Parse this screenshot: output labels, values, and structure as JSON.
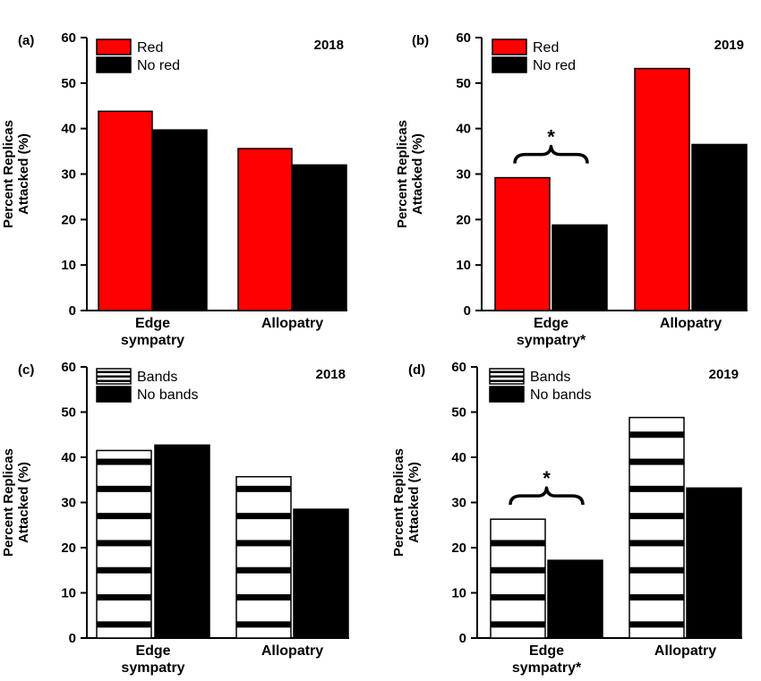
{
  "chart_data": [
    {
      "type": "bar",
      "panel": "(a)",
      "year": "2018",
      "ylabel": [
        "Percent Replicas",
        "Attacked (%)"
      ],
      "ylim": [
        0,
        60
      ],
      "yticks": [
        0,
        10,
        20,
        30,
        40,
        50,
        60
      ],
      "categories": [
        [
          "Edge",
          "sympatry"
        ],
        [
          "Allopatry"
        ]
      ],
      "series": [
        {
          "name": "Red",
          "values": [
            43.8,
            35.6
          ],
          "style": "solid",
          "color": "#ff0000"
        },
        {
          "name": "No red",
          "values": [
            39.7,
            32.0
          ],
          "style": "solid",
          "color": "#000000"
        }
      ],
      "significance": null
    },
    {
      "type": "bar",
      "panel": "(b)",
      "year": "2019",
      "ylabel": [
        "Percent Replicas",
        "Attacked (%)"
      ],
      "ylim": [
        0,
        60
      ],
      "yticks": [
        0,
        10,
        20,
        30,
        40,
        50,
        60
      ],
      "categories": [
        [
          "Edge",
          "sympatry*"
        ],
        [
          "Allopatry"
        ]
      ],
      "series": [
        {
          "name": "Red",
          "values": [
            29.2,
            53.2
          ],
          "style": "solid",
          "color": "#ff0000"
        },
        {
          "name": "No red",
          "values": [
            18.8,
            36.5
          ],
          "style": "solid",
          "color": "#000000"
        }
      ],
      "significance": {
        "category": 0,
        "label": "*"
      }
    },
    {
      "type": "bar",
      "panel": "(c)",
      "year": "2018",
      "ylabel": [
        "Percent Replicas",
        "Attacked (%)"
      ],
      "ylim": [
        0,
        60
      ],
      "yticks": [
        0,
        10,
        20,
        30,
        40,
        50,
        60
      ],
      "categories": [
        [
          "Edge",
          "sympatry"
        ],
        [
          "Allopatry"
        ]
      ],
      "series": [
        {
          "name": "Bands",
          "values": [
            41.5,
            35.7
          ],
          "style": "banded",
          "color": "#ffffff"
        },
        {
          "name": "No bands",
          "values": [
            42.7,
            28.5
          ],
          "style": "solid",
          "color": "#000000"
        }
      ],
      "significance": null
    },
    {
      "type": "bar",
      "panel": "(d)",
      "year": "2019",
      "ylabel": [
        "Percent Replicas",
        "Attacked (%)"
      ],
      "ylim": [
        0,
        60
      ],
      "yticks": [
        0,
        10,
        20,
        30,
        40,
        50,
        60
      ],
      "categories": [
        [
          "Edge",
          "sympatry*"
        ],
        [
          "Allopatry"
        ]
      ],
      "series": [
        {
          "name": "Bands",
          "values": [
            26.3,
            48.8
          ],
          "style": "banded",
          "color": "#ffffff"
        },
        {
          "name": "No bands",
          "values": [
            17.2,
            33.2
          ],
          "style": "solid",
          "color": "#000000"
        }
      ],
      "significance": {
        "category": 0,
        "label": "*"
      }
    }
  ]
}
